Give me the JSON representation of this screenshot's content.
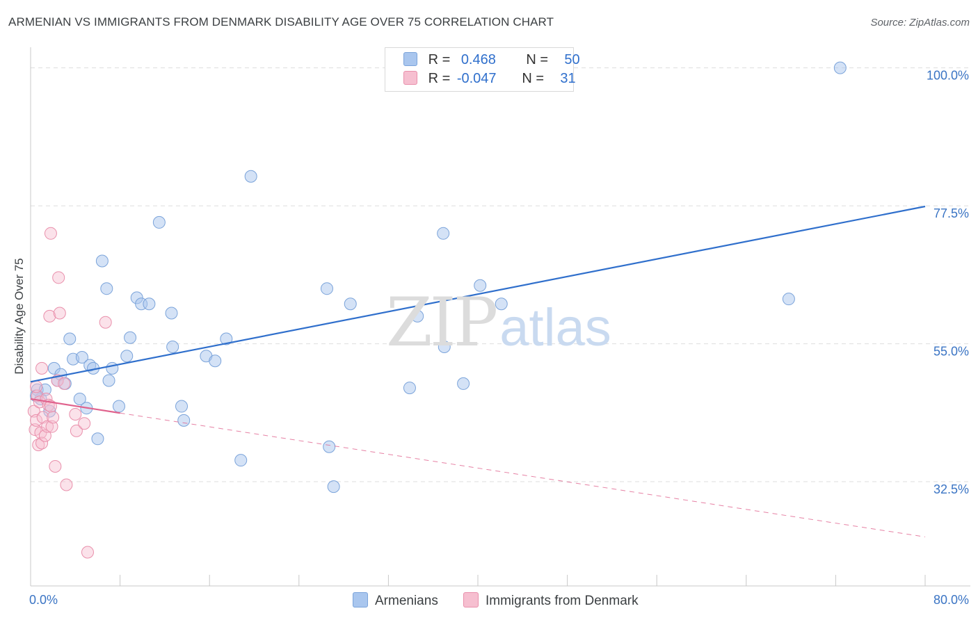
{
  "header": {
    "title": "ARMENIAN VS IMMIGRANTS FROM DENMARK DISABILITY AGE OVER 75 CORRELATION CHART",
    "source": "Source: ZipAtlas.com"
  },
  "legend": {
    "r_label": "R =",
    "n_label": "N =",
    "rows": [
      {
        "r": "0.468",
        "n": "50"
      },
      {
        "r": "-0.047",
        "n": "31"
      }
    ]
  },
  "watermark": {
    "zip": "ZIP",
    "atlas": "atlas"
  },
  "colors": {
    "blue_fill": "#a9c6ee",
    "blue_stroke": "#7aa3da",
    "blue_line": "#2f6fcc",
    "pink_fill": "#f6bfd0",
    "pink_stroke": "#e98fab",
    "pink_line": "#e0628d",
    "grid": "#dddddd",
    "tick_text": "#3a74c4"
  },
  "chart_data": {
    "type": "scatter",
    "title": "ARMENIAN VS IMMIGRANTS FROM DENMARK DISABILITY AGE OVER 75 CORRELATION CHART",
    "xlabel": "",
    "ylabel": "Disability Age Over 75",
    "xlim": [
      0,
      80
    ],
    "ylim": [
      15.5,
      102
    ],
    "x_tick_labels": [
      "0.0%",
      "80.0%"
    ],
    "y_ticks": [
      32.5,
      55.0,
      77.5,
      100.0
    ],
    "y_tick_labels": [
      "32.5%",
      "55.0%",
      "77.5%",
      "100.0%"
    ],
    "legend_position": "top-center",
    "series": [
      {
        "name": "Armenians",
        "color": "#a9c6ee",
        "r": 0.468,
        "n": 50,
        "trend": {
          "x": [
            0,
            80
          ],
          "y": [
            48.8,
            77.4
          ],
          "style": "solid"
        },
        "points": [
          [
            0.6,
            47.5
          ],
          [
            0.9,
            46.0
          ],
          [
            1.3,
            47.5
          ],
          [
            1.7,
            44.0
          ],
          [
            2.1,
            51.0
          ],
          [
            2.4,
            49.0
          ],
          [
            2.7,
            50.0
          ],
          [
            3.1,
            48.5
          ],
          [
            3.5,
            55.8
          ],
          [
            3.8,
            52.5
          ],
          [
            4.4,
            46.0
          ],
          [
            4.6,
            52.8
          ],
          [
            5.0,
            44.5
          ],
          [
            5.3,
            51.5
          ],
          [
            5.6,
            51.0
          ],
          [
            6.0,
            39.5
          ],
          [
            6.4,
            68.5
          ],
          [
            6.8,
            64.0
          ],
          [
            7.0,
            49.0
          ],
          [
            7.3,
            51.0
          ],
          [
            7.9,
            44.8
          ],
          [
            8.6,
            53.0
          ],
          [
            8.9,
            56.0
          ],
          [
            9.5,
            62.5
          ],
          [
            9.9,
            61.5
          ],
          [
            10.6,
            61.5
          ],
          [
            11.5,
            74.8
          ],
          [
            12.6,
            60.0
          ],
          [
            12.7,
            54.5
          ],
          [
            13.5,
            44.8
          ],
          [
            13.7,
            42.5
          ],
          [
            15.7,
            53.0
          ],
          [
            16.5,
            52.2
          ],
          [
            17.5,
            55.8
          ],
          [
            18.8,
            36.0
          ],
          [
            19.7,
            82.3
          ],
          [
            26.5,
            64.0
          ],
          [
            26.7,
            38.2
          ],
          [
            27.1,
            31.7
          ],
          [
            28.6,
            61.5
          ],
          [
            33.9,
            47.8
          ],
          [
            34.6,
            59.5
          ],
          [
            36.9,
            73.0
          ],
          [
            37.0,
            54.5
          ],
          [
            38.7,
            48.5
          ],
          [
            40.2,
            64.5
          ],
          [
            42.1,
            61.5
          ],
          [
            67.8,
            62.3
          ],
          [
            72.4,
            100.0
          ],
          [
            0.5,
            46.5
          ]
        ]
      },
      {
        "name": "Immigrants from Denmark",
        "color": "#f6bfd0",
        "r": -0.047,
        "n": 31,
        "trend": {
          "x": [
            0,
            8
          ],
          "y": [
            46.0,
            43.7
          ],
          "style": "solid"
        },
        "trend_extended": {
          "x": [
            8,
            80
          ],
          "y": [
            43.7,
            23.5
          ],
          "style": "dashed"
        },
        "points": [
          [
            0.3,
            44.0
          ],
          [
            0.4,
            41.0
          ],
          [
            0.5,
            42.5
          ],
          [
            0.6,
            46.5
          ],
          [
            0.7,
            38.5
          ],
          [
            0.8,
            45.5
          ],
          [
            0.9,
            40.5
          ],
          [
            1.0,
            38.8
          ],
          [
            1.0,
            51.0
          ],
          [
            1.1,
            43.0
          ],
          [
            1.3,
            40.0
          ],
          [
            1.4,
            46.0
          ],
          [
            1.5,
            41.5
          ],
          [
            1.6,
            45.0
          ],
          [
            1.7,
            59.5
          ],
          [
            1.8,
            44.8
          ],
          [
            1.8,
            73.0
          ],
          [
            1.9,
            41.5
          ],
          [
            2.0,
            43.0
          ],
          [
            2.2,
            35.0
          ],
          [
            2.4,
            49.0
          ],
          [
            2.5,
            65.8
          ],
          [
            2.6,
            60.0
          ],
          [
            3.0,
            48.5
          ],
          [
            3.2,
            32.0
          ],
          [
            4.0,
            43.5
          ],
          [
            4.1,
            40.8
          ],
          [
            4.8,
            42.0
          ],
          [
            5.1,
            21.0
          ],
          [
            6.7,
            58.5
          ],
          [
            0.5,
            48.0
          ]
        ]
      }
    ]
  },
  "bottom_legend": {
    "items": [
      {
        "label": "Armenians"
      },
      {
        "label": "Immigrants from Denmark"
      }
    ]
  }
}
